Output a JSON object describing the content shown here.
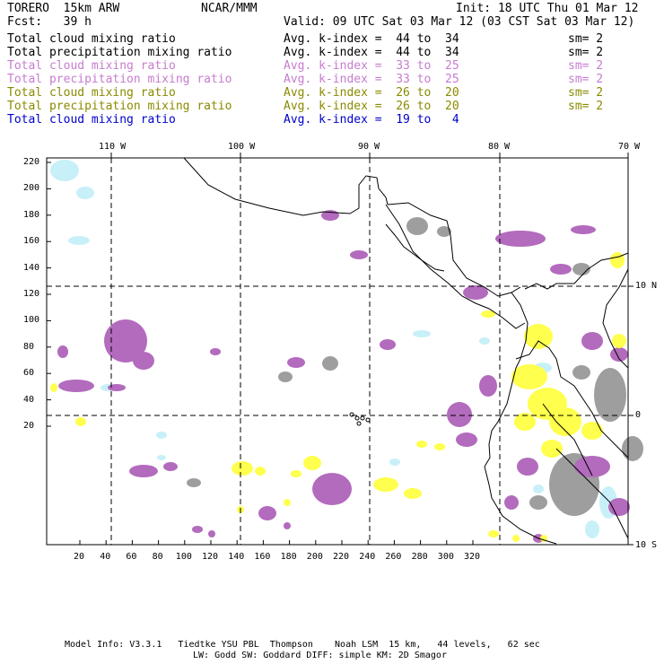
{
  "header": {
    "model": "TORERO  15km ARW",
    "org": "NCAR/MMM",
    "init": "Init: 18 UTC Thu 01 Mar 12",
    "fcst": "Fcst:   39 h",
    "valid": "Valid: 09 UTC Sat 03 Mar 12 (03 CST Sat 03 Mar 12)"
  },
  "fields": [
    {
      "name": "Total cloud mixing ratio",
      "avg": "Avg. k-index =  44 to  34",
      "sm": "sm= 2",
      "color": "#000000"
    },
    {
      "name": "Total precipitation mixing ratio",
      "avg": "Avg. k-index =  44 to  34",
      "sm": "sm= 2",
      "color": "#000000"
    },
    {
      "name": "Total cloud mixing ratio",
      "avg": "Avg. k-index =  33 to  25",
      "sm": "sm= 2",
      "color": "#c77ccf"
    },
    {
      "name": "Total precipitation mixing ratio",
      "avg": "Avg. k-index =  33 to  25",
      "sm": "sm= 2",
      "color": "#c77ccf"
    },
    {
      "name": "Total cloud mixing ratio",
      "avg": "Avg. k-index =  26 to  20",
      "sm": "sm= 2",
      "color": "#8a8a00"
    },
    {
      "name": "Total precipitation mixing ratio",
      "avg": "Avg. k-index =  26 to  20",
      "sm": "sm= 2",
      "color": "#8a8a00"
    },
    {
      "name": "Total cloud mixing ratio",
      "avg": "Avg. k-index =  19 to   4",
      "sm": "",
      "color": "#0000cc"
    }
  ],
  "map": {
    "lon_labels": [
      "110 W",
      "100 W",
      "90 W",
      "80 W",
      "70 W"
    ],
    "lat_labels": [
      "10 N",
      "0",
      "10 S"
    ],
    "y_ticks": [
      "220",
      "200",
      "180",
      "160",
      "140",
      "120",
      "100",
      "80",
      "60",
      "40",
      "20"
    ],
    "x_ticks": [
      "20",
      "40",
      "60",
      "80",
      "100",
      "120",
      "140",
      "160",
      "180",
      "200",
      "220",
      "240",
      "260",
      "280",
      "300",
      "320"
    ],
    "colors": {
      "gray": "#9e9e9e",
      "purple": "#b36bbd",
      "yellow": "#ffff4d",
      "lightblue": "#c8f0f8",
      "grid": "#000000"
    }
  },
  "footer": {
    "line1": "Model Info: V3.3.1   Tiedtke YSU PBL  Thompson    Noah LSM  15 km,   44 levels,   62 sec",
    "line2": "LW: Godd SW: Goddard DIFF: simple KM: 2D Smagor"
  }
}
